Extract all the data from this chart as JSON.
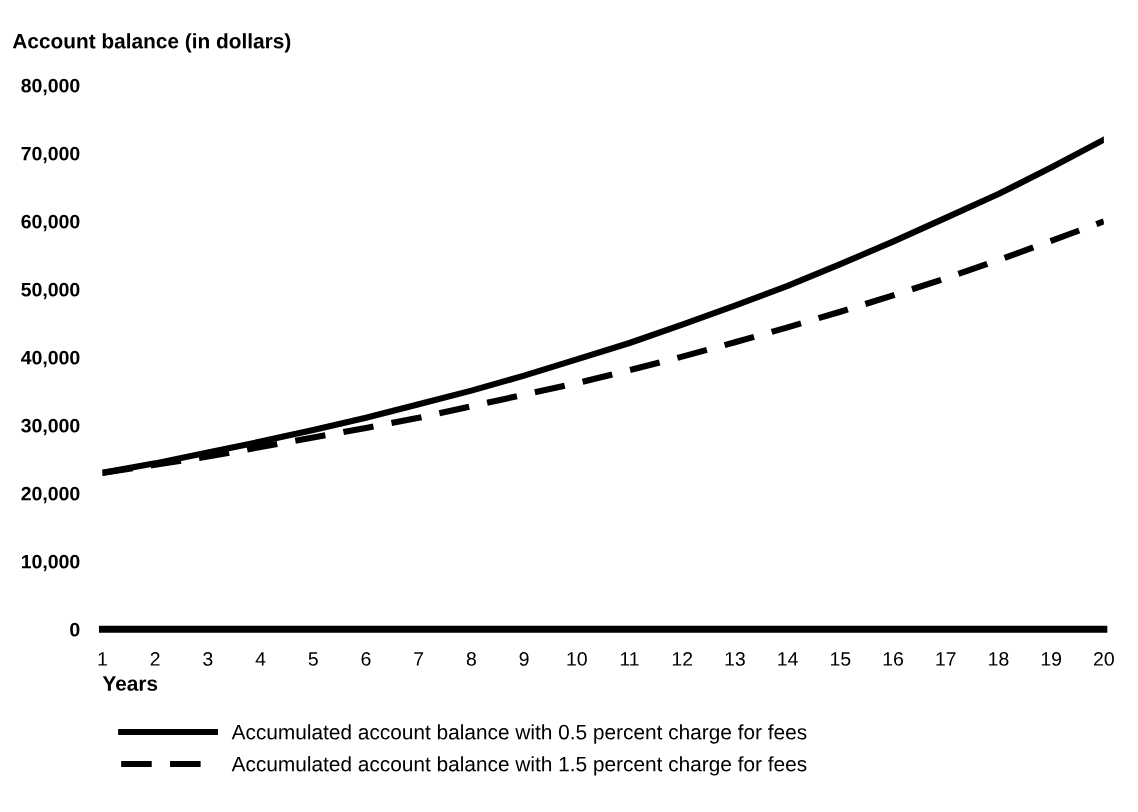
{
  "chart_data": {
    "type": "line",
    "ylabel": "Account balance (in dollars)",
    "xlabel": "Years",
    "x": [
      1,
      2,
      3,
      4,
      5,
      6,
      7,
      8,
      9,
      10,
      11,
      12,
      13,
      14,
      15,
      16,
      17,
      18,
      19,
      20
    ],
    "series": [
      {
        "name": "Accumulated account balance with 0.5 percent charge for fees",
        "color": "#000000",
        "line_style": "solid",
        "values": [
          23000,
          24400,
          26000,
          27600,
          29300,
          31100,
          33100,
          35100,
          37300,
          39700,
          42100,
          44800,
          47600,
          50500,
          53700,
          57000,
          60500,
          64000,
          67900,
          72000
        ]
      },
      {
        "name": "Accumulated account balance with 1.5 percent charge for fees",
        "color": "#000000",
        "line_style": "dashed",
        "values": [
          23000,
          24200,
          25400,
          26800,
          28200,
          29600,
          31100,
          32800,
          34500,
          36200,
          38100,
          40100,
          42200,
          44400,
          46700,
          49100,
          51600,
          54300,
          57100,
          60000
        ]
      }
    ],
    "xlim": [
      1,
      20
    ],
    "xticks": [
      1,
      2,
      3,
      4,
      5,
      6,
      7,
      8,
      9,
      10,
      11,
      12,
      13,
      14,
      15,
      16,
      17,
      18,
      19,
      20
    ],
    "ylim": [
      0,
      80000
    ],
    "yticks": [
      {
        "value": 0,
        "label": "0"
      },
      {
        "value": 10000,
        "label": "10,000"
      },
      {
        "value": 20000,
        "label": "20,000"
      },
      {
        "value": 30000,
        "label": "30,000"
      },
      {
        "value": 40000,
        "label": "40,000"
      },
      {
        "value": 50000,
        "label": "50,000"
      },
      {
        "value": 60000,
        "label": "60,000"
      },
      {
        "value": 70000,
        "label": "70,000"
      },
      {
        "value": 80000,
        "label": "80,000"
      }
    ],
    "grid": false,
    "legend": "bottom",
    "marker": "none"
  }
}
